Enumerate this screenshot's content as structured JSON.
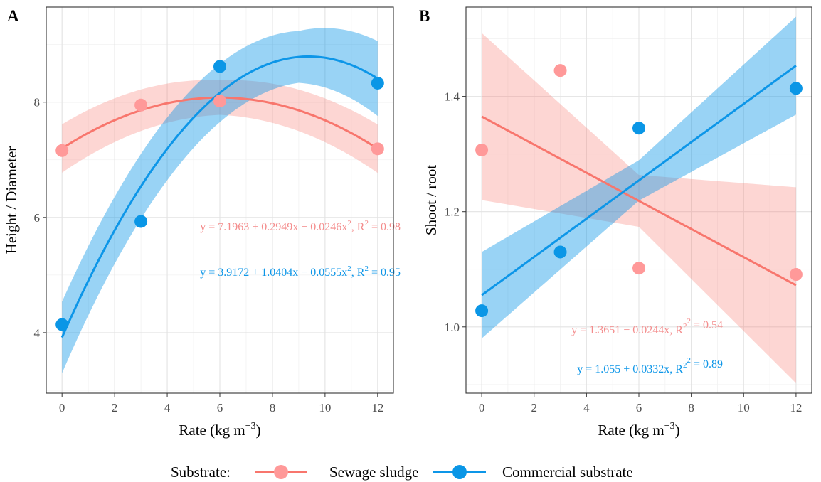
{
  "colors": {
    "sewage": "#F8766D",
    "sewage_point": "#FF9999",
    "sewage_eq": "#F48C8C",
    "commercial": "#0D96E8",
    "commercial_point": "#0A96E6",
    "grid_major": "#E3E3E3",
    "grid_minor": "#F2F2F2",
    "axis_text": "#4D4D4D"
  },
  "legend": {
    "title": "Substrate:",
    "items": [
      "Sewage sludge",
      "Commercial substrate"
    ],
    "placement": "bottom"
  },
  "chart_data": [
    {
      "type": "scatter",
      "panel_label": "A",
      "title": "",
      "xlabel": "Rate (kg m",
      "xlabel_sup": "−3",
      "xlabel_tail": ")",
      "ylabel": "Height / Diameter",
      "xlim": [
        -0.6,
        12.6
      ],
      "ylim": [
        2.95,
        9.65
      ],
      "xticks": [
        0,
        2,
        4,
        6,
        8,
        10,
        12
      ],
      "yticks": [
        4,
        6,
        8
      ],
      "grid": true,
      "series": [
        {
          "name": "Sewage sludge",
          "x": [
            0,
            3,
            6,
            12
          ],
          "y": [
            7.16,
            7.95,
            8.02,
            7.19
          ],
          "fit": {
            "model": "quadratic",
            "coef": [
              7.1963,
              0.2949,
              -0.0246
            ],
            "ci": [
              [
                0,
                0.42
              ],
              [
                6,
                0.3
              ],
              [
                12,
                0.42
              ]
            ]
          },
          "equation": "y = 7.1963 + 0.2949x − 0.0246x",
          "r2": "0.98"
        },
        {
          "name": "Commercial substrate",
          "x": [
            0,
            3,
            6,
            12
          ],
          "y": [
            4.14,
            5.93,
            8.62,
            8.33
          ],
          "fit": {
            "model": "quadratic",
            "coef": [
              3.9172,
              1.0404,
              -0.0555
            ],
            "ci": [
              [
                0,
                0.62
              ],
              [
                9,
                0.45
              ],
              [
                12,
                0.65
              ]
            ]
          },
          "equation": "y = 3.9172 + 1.0404x − 0.0555x",
          "r2": "0.95"
        }
      ]
    },
    {
      "type": "scatter",
      "panel_label": "B",
      "title": "",
      "xlabel": "Rate (kg m",
      "xlabel_sup": "−3",
      "xlabel_tail": ")",
      "ylabel": "Shoot / root",
      "xlim": [
        -0.6,
        12.6
      ],
      "ylim": [
        0.885,
        1.555
      ],
      "xticks": [
        0,
        2,
        4,
        6,
        8,
        10,
        12
      ],
      "yticks": [
        1.0,
        1.2,
        1.4
      ],
      "ytick_labels": [
        "1.0",
        "1.2",
        "1.4"
      ],
      "grid": true,
      "series": [
        {
          "name": "Sewage sludge",
          "x": [
            0,
            3,
            6,
            12
          ],
          "y": [
            1.307,
            1.445,
            1.102,
            1.091
          ],
          "fit": {
            "model": "linear",
            "coef": [
              1.3651,
              -0.0244
            ],
            "ci": [
              [
                0,
                0.145
              ],
              [
                6,
                0.045
              ],
              [
                12,
                0.17
              ]
            ]
          },
          "equation": "y = 1.3651 − 0.0244x, R",
          "r2": "0.54"
        },
        {
          "name": "Commercial substrate",
          "x": [
            0,
            3,
            6,
            12
          ],
          "y": [
            1.028,
            1.13,
            1.345,
            1.414
          ],
          "fit": {
            "model": "linear",
            "coef": [
              1.055,
              0.0332
            ],
            "ci": [
              [
                0,
                0.075
              ],
              [
                6,
                0.035
              ],
              [
                12,
                0.085
              ]
            ]
          },
          "equation": "y = 1.055 + 0.0332x, R",
          "r2": "0.89"
        }
      ]
    }
  ]
}
